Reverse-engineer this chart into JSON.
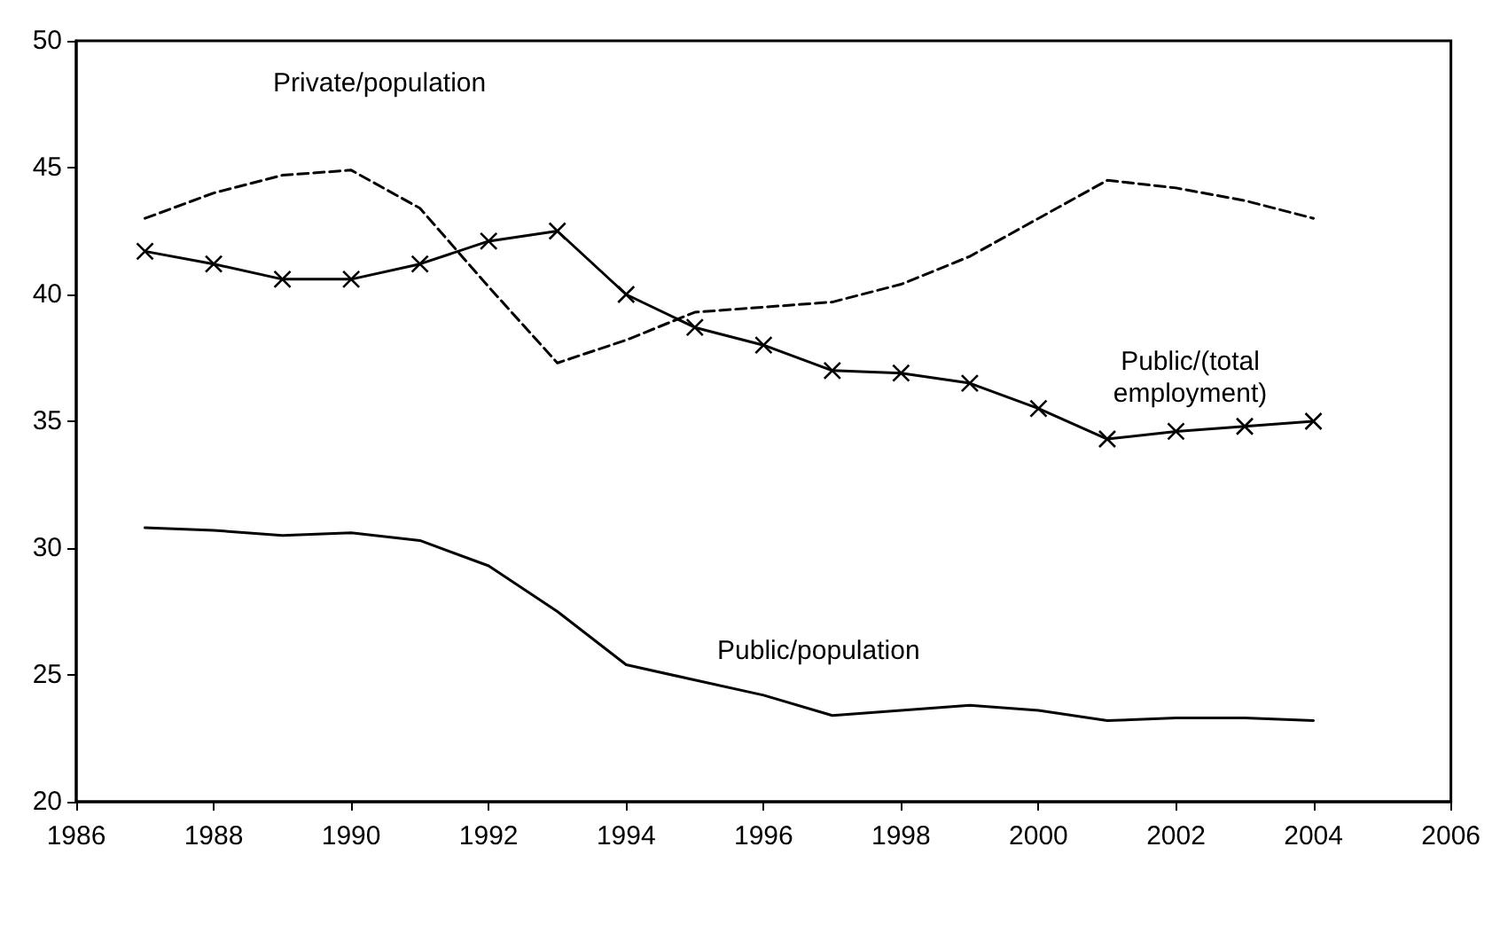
{
  "chart_data": {
    "type": "line",
    "x": [
      1987,
      1988,
      1989,
      1990,
      1991,
      1992,
      1993,
      1994,
      1995,
      1996,
      1997,
      1998,
      1999,
      2000,
      2001,
      2002,
      2003,
      2004
    ],
    "series": [
      {
        "name": "Public/(total\nemployment)",
        "color": "#000000",
        "marker": "cross",
        "line_style": "solid",
        "values": [
          41.7,
          41.2,
          40.6,
          40.6,
          41.2,
          42.1,
          42.5,
          40.0,
          38.7,
          38.0,
          37.0,
          36.9,
          36.5,
          35.5,
          34.3,
          34.6,
          34.8,
          35.0
        ]
      },
      {
        "name": "Private/population",
        "color": "#000000",
        "marker": "none",
        "line_style": "dashed",
        "values": [
          43.0,
          44.0,
          44.7,
          44.9,
          43.4,
          40.3,
          37.3,
          38.2,
          39.3,
          39.5,
          39.7,
          40.4,
          41.5,
          43.0,
          44.5,
          44.2,
          43.7,
          43.0
        ]
      },
      {
        "name": "Public/population",
        "color": "#000000",
        "marker": "none",
        "line_style": "solid",
        "values": [
          30.8,
          30.7,
          30.5,
          30.6,
          30.3,
          29.3,
          27.5,
          25.4,
          24.8,
          24.2,
          23.4,
          23.6,
          23.8,
          23.6,
          23.2,
          23.3,
          23.3,
          23.2
        ]
      }
    ],
    "xlim": [
      1986,
      2006
    ],
    "xticks": [
      1986,
      1988,
      1990,
      1992,
      1994,
      1996,
      1998,
      2000,
      2002,
      2004,
      2006
    ],
    "ylim": [
      20,
      50
    ],
    "yticks": [
      20,
      25,
      30,
      35,
      40,
      45,
      50
    ],
    "grid": false,
    "legend": false
  }
}
